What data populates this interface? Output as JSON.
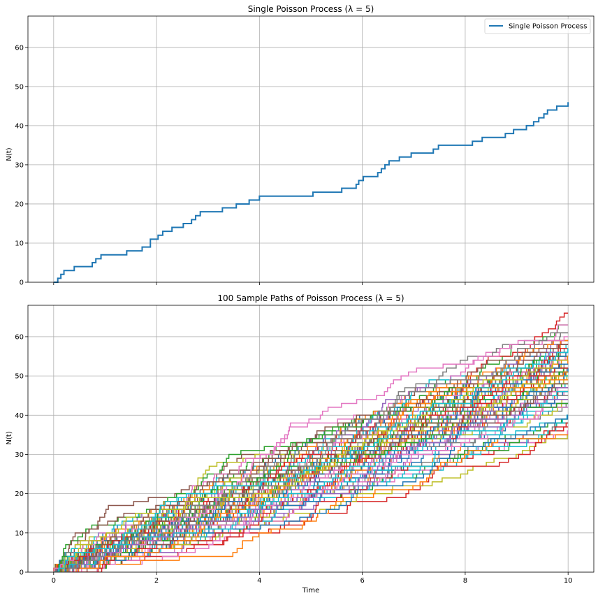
{
  "chart_data": [
    {
      "type": "line",
      "step": "post",
      "title": "Single Poisson Process (λ = 5)",
      "xlabel": "",
      "ylabel": "N(t)",
      "xlim": [
        -0.5,
        10.5
      ],
      "ylim": [
        0,
        68
      ],
      "xticks": [
        0,
        2,
        4,
        6,
        8,
        10
      ],
      "yticks": [
        0,
        10,
        20,
        30,
        40,
        50,
        60
      ],
      "show_x_tick_labels": false,
      "grid": true,
      "legend": {
        "placement": "top-right",
        "entries": [
          "Single Poisson Process"
        ]
      },
      "series": [
        {
          "name": "Single Poisson Process",
          "color": "#1f77b4",
          "x": [
            0,
            0.08,
            0.14,
            0.2,
            0.4,
            0.75,
            0.82,
            0.92,
            1.42,
            1.72,
            1.88,
            2.03,
            2.12,
            2.3,
            2.52,
            2.68,
            2.76,
            2.85,
            3.28,
            3.55,
            3.8,
            4.0,
            5.04,
            5.6,
            5.88,
            5.93,
            6.02,
            6.3,
            6.37,
            6.44,
            6.52,
            6.72,
            6.95,
            7.38,
            7.48,
            8.14,
            8.33,
            8.78,
            8.94,
            9.19,
            9.33,
            9.43,
            9.53,
            9.6,
            9.78,
            10.0
          ],
          "y": [
            0,
            1,
            2,
            3,
            4,
            5,
            6,
            7,
            8,
            9,
            11,
            12,
            13,
            14,
            15,
            16,
            17,
            18,
            19,
            20,
            21,
            22,
            23,
            24,
            25,
            26,
            27,
            28,
            29,
            30,
            31,
            32,
            33,
            34,
            35,
            36,
            37,
            38,
            39,
            40,
            41,
            42,
            43,
            44,
            45,
            46
          ]
        }
      ]
    },
    {
      "type": "line",
      "step": "post",
      "title": "100 Sample Paths of Poisson Process (λ = 5)",
      "xlabel": "Time",
      "ylabel": "N(t)",
      "xlim": [
        -0.5,
        10.5
      ],
      "ylim": [
        0,
        68
      ],
      "xticks": [
        0,
        2,
        4,
        6,
        8,
        10
      ],
      "yticks": [
        0,
        10,
        20,
        30,
        40,
        50,
        60
      ],
      "show_x_tick_labels": true,
      "grid": true,
      "path_count": 100,
      "rate": 5,
      "t_max": 10,
      "final_value_range": [
        31,
        68
      ],
      "palette": [
        "#1f77b4",
        "#ff7f0e",
        "#2ca02c",
        "#d62728",
        "#9467bd",
        "#8c564b",
        "#e377c2",
        "#7f7f7f",
        "#bcbd22",
        "#17becf"
      ]
    }
  ]
}
